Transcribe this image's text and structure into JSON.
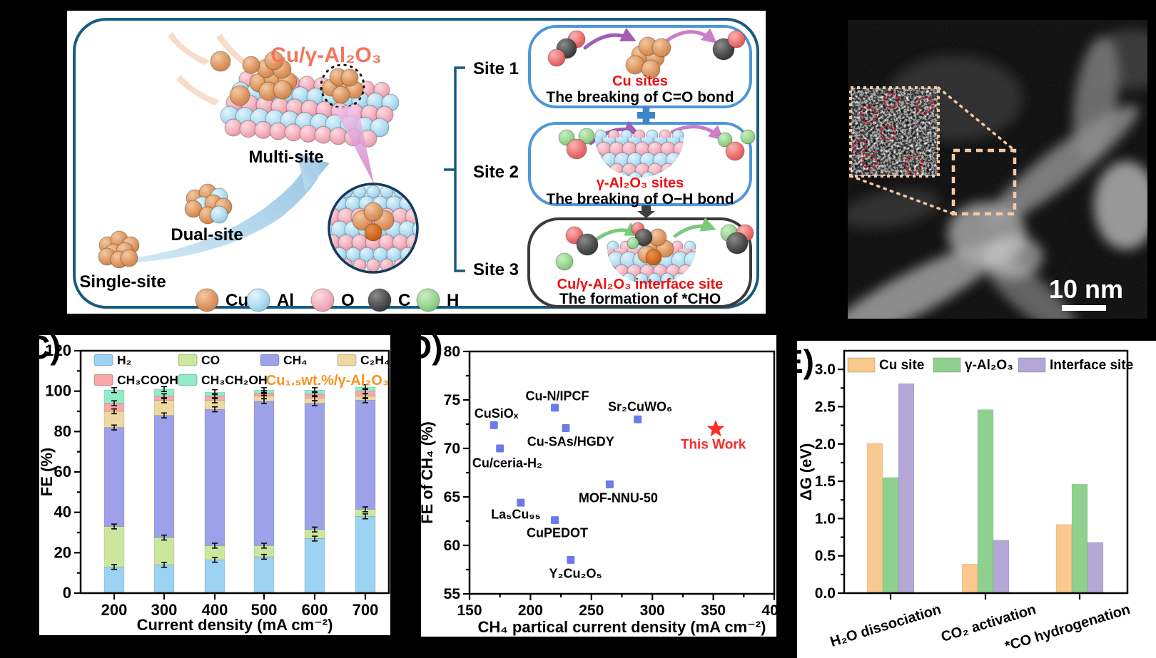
{
  "panels": {
    "a": {
      "title": "Cu/γ-Al₂O₃",
      "title_color": "#F4755C",
      "stages": [
        {
          "label": "Single-site"
        },
        {
          "label": "Dual-site"
        },
        {
          "label": "Multi-site"
        }
      ],
      "sites": [
        {
          "name": "Site 1",
          "site": "Cu sites",
          "desc": "The breaking of C=O bond"
        },
        {
          "name": "Site 2",
          "site": "γ-Al₂O₃ sites",
          "desc": "The breaking of O−H bond"
        },
        {
          "name": "Site 3",
          "site": "Cu/γ-Al₂O₃ interface site",
          "desc": "The formation of *CHO"
        }
      ],
      "site_label_color": "#EE1111",
      "legend": [
        {
          "label": "Cu",
          "color": "#DD9660"
        },
        {
          "label": "Al",
          "color": "#AEDCF2"
        },
        {
          "label": "O",
          "color": "#F3AEBC"
        },
        {
          "label": "C",
          "color": "#4E4E4E"
        },
        {
          "label": "H",
          "color": "#97D68D"
        }
      ]
    },
    "b": {
      "scale_bar": "10 nm"
    },
    "c": {
      "label": "C)"
    },
    "d": {
      "label": "D)"
    },
    "e": {
      "label": "E)"
    }
  },
  "chart_data": [
    {
      "id": "c",
      "type": "bar",
      "stacked": true,
      "title": "Cu₁.₅wt.%/γ-Al₂O₃",
      "title_color": "#F7941D",
      "categories": [
        200,
        300,
        400,
        500,
        600,
        700
      ],
      "series": [
        {
          "name": "H₂",
          "color": "#9CD2F2",
          "values": [
            13,
            14,
            16.5,
            18,
            27,
            38
          ]
        },
        {
          "name": "CO",
          "color": "#CBE79D",
          "values": [
            20,
            13.5,
            7,
            5.5,
            4.5,
            3.5
          ]
        },
        {
          "name": "CH₄",
          "color": "#9DA2E8",
          "values": [
            49,
            60.5,
            67.5,
            71.5,
            62.5,
            54
          ]
        },
        {
          "name": "C₂H₄",
          "color": "#EDD9A1",
          "values": [
            8,
            7.5,
            4.5,
            2.5,
            2.5,
            2
          ]
        },
        {
          "name": "CH₃COOH",
          "color": "#F7A8A8",
          "values": [
            4,
            2,
            2,
            1.5,
            2,
            2.5
          ]
        },
        {
          "name": "CH₃CH₂OH",
          "color": "#90EDC8",
          "values": [
            6.5,
            3.5,
            2,
            1.5,
            2,
            2
          ]
        }
      ],
      "error": 1.2,
      "xlabel": "Current density (mA cm⁻²)",
      "ylabel": "FE (%)",
      "ylim": [
        0,
        120
      ],
      "ytick_step": 20,
      "yminor_step": 10,
      "legend_position": "top-inside",
      "grid": false
    },
    {
      "id": "d",
      "type": "scatter",
      "points": [
        {
          "label": "CuSiOₓ",
          "x": 170,
          "y": 72.4,
          "lx": 172,
          "ly": 73.6
        },
        {
          "label": "Cu/ceria-H₂",
          "x": 175,
          "y": 70.0,
          "lx": 181,
          "ly": 68.5
        },
        {
          "label": "Cu-N/IPCF",
          "x": 220,
          "y": 74.2,
          "lx": 222,
          "ly": 75.4
        },
        {
          "label": "Cu-SAs/HGDY",
          "x": 229,
          "y": 72.1,
          "lx": 233,
          "ly": 70.7
        },
        {
          "label": "Sr₂CuWO₆",
          "x": 288,
          "y": 73.0,
          "lx": 290,
          "ly": 74.3
        },
        {
          "label": "MOF-NNU-50",
          "x": 265,
          "y": 66.3,
          "lx": 272,
          "ly": 64.9
        },
        {
          "label": "La₅Cu₉₅",
          "x": 192,
          "y": 64.4,
          "lx": 188,
          "ly": 63.2
        },
        {
          "label": "CuPEDOT",
          "x": 220,
          "y": 62.6,
          "lx": 222,
          "ly": 61.3
        },
        {
          "label": "Y₂Cu₂O₅",
          "x": 233,
          "y": 58.5,
          "lx": 237,
          "ly": 57.1
        }
      ],
      "highlight": {
        "label": "This Work",
        "x": 352,
        "y": 72.0,
        "lx": 350,
        "ly": 70.4,
        "color": "#F92C2C"
      },
      "marker_color": "#6B7BE8",
      "xlabel": "CH₄ partical current density (mA cm⁻²)",
      "ylabel": "FE of CH₄ (%)",
      "xlim": [
        150,
        400
      ],
      "ylim": [
        55,
        80
      ],
      "xtick_step": 50,
      "ytick_step": 5,
      "xminor_step": 25,
      "yminor_step": 2.5,
      "grid": false
    },
    {
      "id": "e",
      "type": "bar",
      "grouped": true,
      "categories": [
        "H₂O dissociation",
        "CO₂ activation",
        "*CO hydrogenation"
      ],
      "series": [
        {
          "name": "Cu site",
          "color": "#FAC98F",
          "values": [
            2.01,
            0.39,
            0.92
          ]
        },
        {
          "name": "γ-Al₂O₃",
          "color": "#8FD08F",
          "values": [
            1.55,
            2.46,
            1.46
          ]
        },
        {
          "name": "Interface site",
          "color": "#B4A7D6",
          "values": [
            2.81,
            0.71,
            0.68
          ]
        }
      ],
      "ylabel": "ΔG (eV)",
      "ylim": [
        0,
        3.25
      ],
      "ytick_step": 0.5,
      "yminor_step": 0.25,
      "legend_position": "top-inside",
      "grid": false
    }
  ]
}
